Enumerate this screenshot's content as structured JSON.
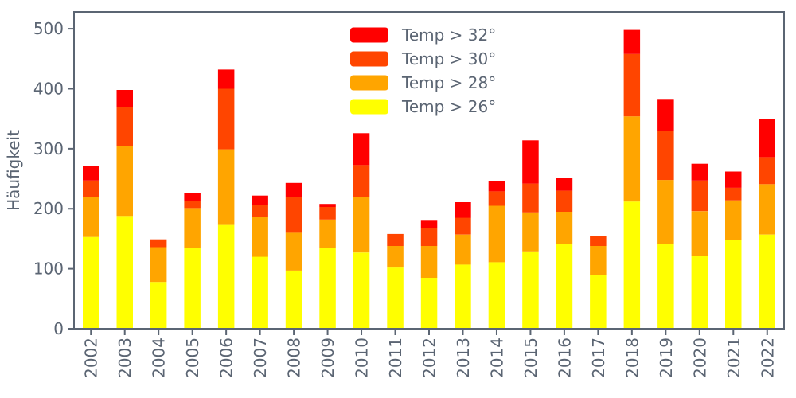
{
  "style": {
    "text_color": "#5b6573",
    "spine_color": "#5b6573",
    "background": "#ffffff",
    "tick_font_size": 20,
    "legend_font_size": 20
  },
  "chart_data": {
    "type": "bar",
    "stacked": true,
    "title": "",
    "xlabel": "",
    "ylabel": "Häufigkeit",
    "categories": [
      "2002",
      "2003",
      "2004",
      "2005",
      "2006",
      "2007",
      "2008",
      "2009",
      "2010",
      "2011",
      "2012",
      "2013",
      "2014",
      "2015",
      "2016",
      "2017",
      "2018",
      "2019",
      "2020",
      "2021",
      "2022"
    ],
    "series": [
      {
        "name": "Temp > 26°",
        "color": "#ffff00",
        "values": [
          153,
          188,
          78,
          134,
          173,
          120,
          97,
          134,
          127,
          102,
          85,
          107,
          111,
          129,
          141,
          89,
          212,
          142,
          122,
          148,
          157
        ]
      },
      {
        "name": "Temp > 28°",
        "color": "#ffa500",
        "values": [
          67,
          117,
          58,
          67,
          126,
          66,
          63,
          48,
          92,
          36,
          53,
          50,
          94,
          65,
          54,
          49,
          142,
          106,
          74,
          66,
          84
        ]
      },
      {
        "name": "Temp > 30°",
        "color": "#ff4500",
        "values": [
          27,
          65,
          13,
          12,
          101,
          21,
          60,
          21,
          54,
          20,
          30,
          28,
          24,
          48,
          35,
          16,
          104,
          81,
          51,
          21,
          45
        ]
      },
      {
        "name": "Temp > 32°",
        "color": "#ff0000",
        "values": [
          25,
          28,
          0,
          13,
          32,
          15,
          23,
          5,
          53,
          0,
          12,
          26,
          17,
          72,
          21,
          0,
          40,
          54,
          28,
          27,
          63
        ]
      }
    ],
    "totals": [
      272,
      398,
      149,
      226,
      432,
      222,
      243,
      208,
      326,
      158,
      180,
      211,
      246,
      314,
      251,
      154,
      498,
      383,
      275,
      262,
      349
    ],
    "legend_entries": [
      {
        "label": "Temp > 32°",
        "color": "#ff0000"
      },
      {
        "label": "Temp > 30°",
        "color": "#ff4500"
      },
      {
        "label": "Temp > 28°",
        "color": "#ffa500"
      },
      {
        "label": "Temp > 26°",
        "color": "#ffff00"
      }
    ],
    "legend_position": "upper center",
    "grid": false,
    "ylim": [
      0,
      528
    ],
    "yticks": [
      0,
      100,
      200,
      300,
      400,
      500
    ]
  }
}
